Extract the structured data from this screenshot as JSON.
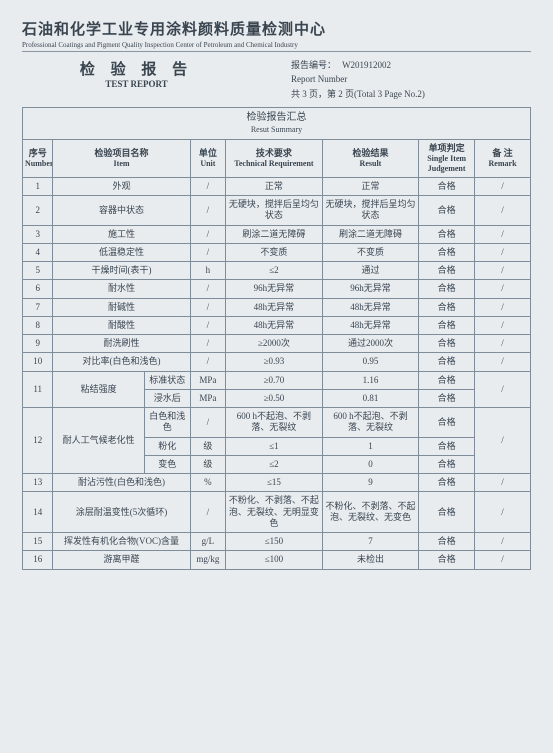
{
  "header": {
    "org_cn": "石油和化学工业专用涂料颜料质量检测中心",
    "org_en": "Professional Coatings and Pigment Quality Inspection Center of Petroleum and Chemical Industry",
    "title_cn": "检 验 报 告",
    "title_en": "TEST REPORT",
    "report_no_label": "报告编号：",
    "report_no": "W201912002",
    "report_no_en": "Report Number",
    "page_info": "共 3 页，第 2 页(Total 3 Page No.2)"
  },
  "summary": {
    "title_cn": "检验报告汇总",
    "title_en": "Resut Summary"
  },
  "cols": {
    "num_cn": "序号",
    "num_en": "Number",
    "item_cn": "检验项目名称",
    "item_en": "Item",
    "unit_cn": "单位",
    "unit_en": "Unit",
    "req_cn": "技术要求",
    "req_en": "Technical Requirement",
    "res_cn": "检验结果",
    "res_en": "Result",
    "judge_cn": "单项判定",
    "judge_en": "Single Item Judgement",
    "rem_cn": "备  注",
    "rem_en": "Remark"
  },
  "rows": [
    {
      "n": "1",
      "item": "外观",
      "unit": "/",
      "req": "正常",
      "res": "正常",
      "j": "合格",
      "r": "/"
    },
    {
      "n": "2",
      "item": "容器中状态",
      "unit": "/",
      "req": "无硬块，搅拌后呈均匀状态",
      "res": "无硬块，搅拌后呈均匀状态",
      "j": "合格",
      "r": "/"
    },
    {
      "n": "3",
      "item": "施工性",
      "unit": "/",
      "req": "刷涂二道无障碍",
      "res": "刷涂二道无障碍",
      "j": "合格",
      "r": "/"
    },
    {
      "n": "4",
      "item": "低温稳定性",
      "unit": "/",
      "req": "不变质",
      "res": "不变质",
      "j": "合格",
      "r": "/"
    },
    {
      "n": "5",
      "item": "干燥时间(表干)",
      "unit": "h",
      "req": "≤2",
      "res": "通过",
      "j": "合格",
      "r": "/"
    },
    {
      "n": "6",
      "item": "耐水性",
      "unit": "/",
      "req": "96h无异常",
      "res": "96h无异常",
      "j": "合格",
      "r": "/"
    },
    {
      "n": "7",
      "item": "耐碱性",
      "unit": "/",
      "req": "48h无异常",
      "res": "48h无异常",
      "j": "合格",
      "r": "/"
    },
    {
      "n": "8",
      "item": "耐酸性",
      "unit": "/",
      "req": "48h无异常",
      "res": "48h无异常",
      "j": "合格",
      "r": "/"
    },
    {
      "n": "9",
      "item": "耐洗刷性",
      "unit": "/",
      "req": "≥2000次",
      "res": "通过2000次",
      "j": "合格",
      "r": "/"
    },
    {
      "n": "10",
      "item": "对比率(白色和浅色)",
      "unit": "/",
      "req": "≥0.93",
      "res": "0.95",
      "j": "合格",
      "r": "/"
    }
  ],
  "row11": {
    "n": "11",
    "item": "粘结强度",
    "sub1": "标准状态",
    "u1": "MPa",
    "req1": "≥0.70",
    "res1": "1.16",
    "j1": "合格",
    "sub2": "浸水后",
    "u2": "MPa",
    "req2": "≥0.50",
    "res2": "0.81",
    "j2": "合格",
    "r": "/"
  },
  "row12": {
    "n": "12",
    "item": "耐人工气候老化性",
    "sub1": "白色和浅色",
    "u1": "/",
    "req1": "600 h不起泡、不剥落、无裂纹",
    "res1": "600 h不起泡、不剥落、无裂纹",
    "j1": "合格",
    "sub2": "粉化",
    "u2": "级",
    "req2": "≤1",
    "res2": "1",
    "j2": "合格",
    "sub3": "变色",
    "u3": "级",
    "req3": "≤2",
    "res3": "0",
    "j3": "合格",
    "r": "/"
  },
  "rowsB": [
    {
      "n": "13",
      "item": "耐沾污性(白色和浅色)",
      "unit": "%",
      "req": "≤15",
      "res": "9",
      "j": "合格",
      "r": "/"
    },
    {
      "n": "14",
      "item": "涂层耐温变性(5次循环)",
      "unit": "/",
      "req": "不粉化、不剥落、不起泡、无裂纹、无明显变色",
      "res": "不粉化、不剥落、不起泡、无裂纹、无变色",
      "j": "合格",
      "r": "/"
    },
    {
      "n": "15",
      "item": "挥发性有机化合物(VOC)含量",
      "unit": "g/L",
      "req": "≤150",
      "res": "7",
      "j": "合格",
      "r": "/"
    },
    {
      "n": "16",
      "item": "游离甲醛",
      "unit": "mg/kg",
      "req": "≤100",
      "res": "未检出",
      "j": "合格",
      "r": "/"
    }
  ]
}
